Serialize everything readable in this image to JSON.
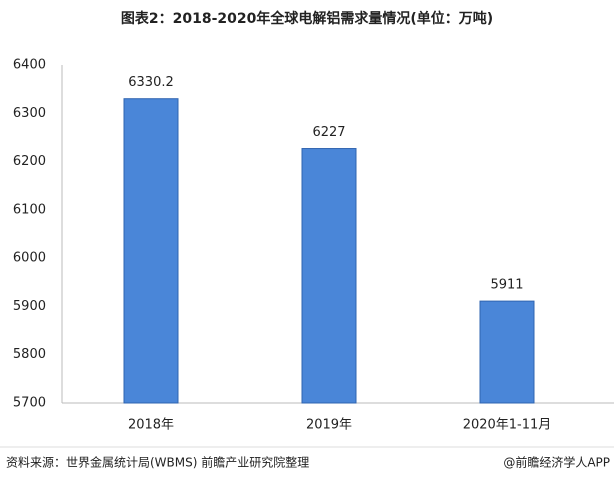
{
  "chart_data": {
    "type": "bar",
    "title": "图表2：2018-2020年全球电解铝需求量情况(单位：万吨)",
    "categories": [
      "2018年",
      "2019年",
      "2020年1-11月"
    ],
    "values": [
      6330.2,
      6227,
      5911
    ],
    "color": "#4a86d8",
    "ylim": [
      5700,
      6400
    ],
    "yticks": [
      5700,
      5800,
      5900,
      6000,
      6100,
      6200,
      6300,
      6400
    ],
    "grid": false,
    "source": "资料来源：世界金属统计局(WBMS) 前瞻产业研究院整理",
    "credit": "@前瞻经济学人APP"
  }
}
